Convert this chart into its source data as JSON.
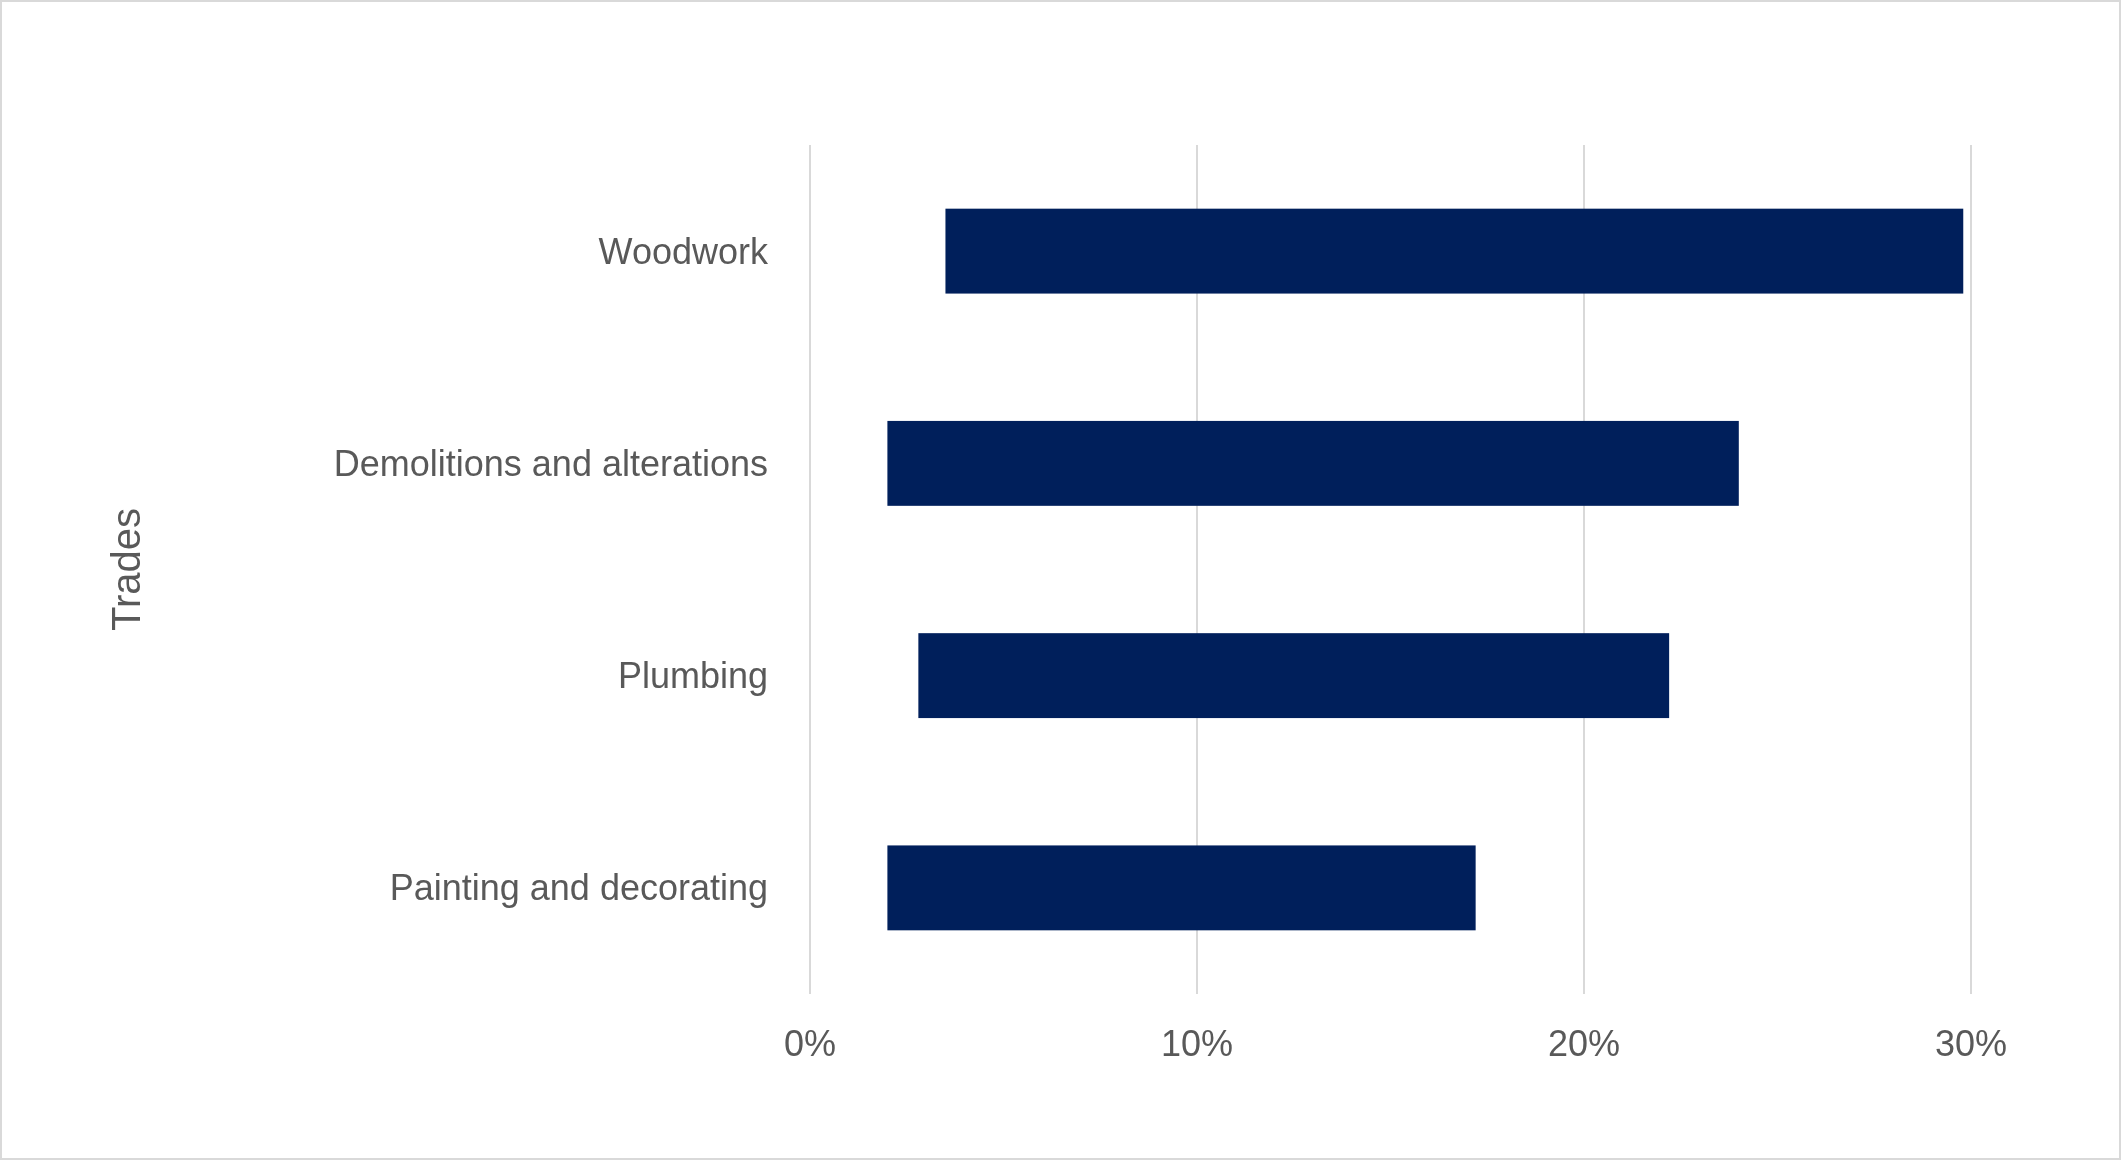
{
  "chart_data": {
    "type": "bar",
    "orientation": "horizontal",
    "ylabel": "Trades",
    "categories": [
      "Woodwork",
      "Demolitions and alterations",
      "Plumbing",
      "Painting and decorating"
    ],
    "base": [
      3.5,
      2,
      2.8,
      2
    ],
    "values": [
      26.3,
      22,
      19.4,
      15.2
    ],
    "color": "#001f5b",
    "xlim": [
      0,
      30
    ],
    "xticks": [
      {
        "value": 0,
        "label": "0%"
      },
      {
        "value": 10,
        "label": "10%"
      },
      {
        "value": 20,
        "label": "20%"
      },
      {
        "value": 30,
        "label": "30%"
      }
    ],
    "grid": "x"
  }
}
